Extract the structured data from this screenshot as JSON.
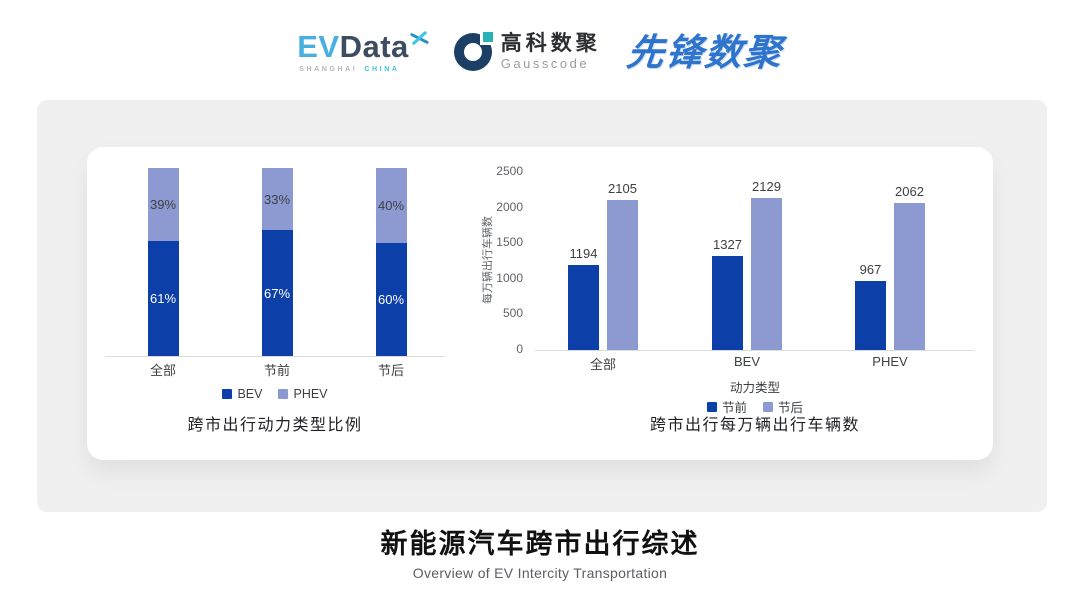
{
  "header": {
    "logos": {
      "evdata": {
        "ev": "EV",
        "data": "Data",
        "sub_left": "SHANGHAI",
        "sub_right": "CHINA"
      },
      "gausscode": {
        "cn": "高科数聚",
        "en": "Gausscode"
      },
      "xianfeng": {
        "text": "先锋数聚"
      }
    }
  },
  "colors": {
    "bev_dark_blue": "#0d3fa8",
    "phev_light_blue": "#8d9ad2",
    "card_bg": "#f0f0f1",
    "panel_bg": "#ffffff",
    "evdata_cyan": "#48b0e0",
    "gausscode_navy": "#1c3f66",
    "gausscode_teal": "#27b2b8",
    "xianfeng_blue": "#2e74cd"
  },
  "chart_data": [
    {
      "type": "bar",
      "subtype": "stacked-100-percent",
      "title": "跨市出行动力类型比例",
      "categories": [
        "全部",
        "节前",
        "节后"
      ],
      "series": [
        {
          "name": "BEV",
          "values": [
            61,
            67,
            60
          ],
          "color": "#0d3fa8",
          "label_suffix": "%",
          "label_color": "#ffffff"
        },
        {
          "name": "PHEV",
          "values": [
            39,
            33,
            40
          ],
          "color": "#8d9ad2",
          "label_suffix": "%",
          "label_color": "#3c4043"
        }
      ],
      "ylim": [
        0,
        100
      ],
      "grid": false,
      "legend_position": "bottom"
    },
    {
      "type": "bar",
      "subtype": "grouped",
      "title": "跨市出行每万辆出行车辆数",
      "categories": [
        "全部",
        "BEV",
        "PHEV"
      ],
      "xlabel": "动力类型",
      "ylabel": "每万辆出行车辆数",
      "ylim": [
        0,
        2500
      ],
      "yticks": [
        0,
        500,
        1000,
        1500,
        2000,
        2500
      ],
      "series": [
        {
          "name": "节前",
          "values": [
            1194,
            1327,
            967
          ],
          "color": "#0d3fa8"
        },
        {
          "name": "节后",
          "values": [
            2105,
            2129,
            2062
          ],
          "color": "#8d9ad2"
        }
      ],
      "grid": false,
      "legend_position": "bottom"
    }
  ],
  "footer": {
    "title": "新能源汽车跨市出行综述",
    "subtitle": "Overview of EV Intercity Transportation"
  }
}
